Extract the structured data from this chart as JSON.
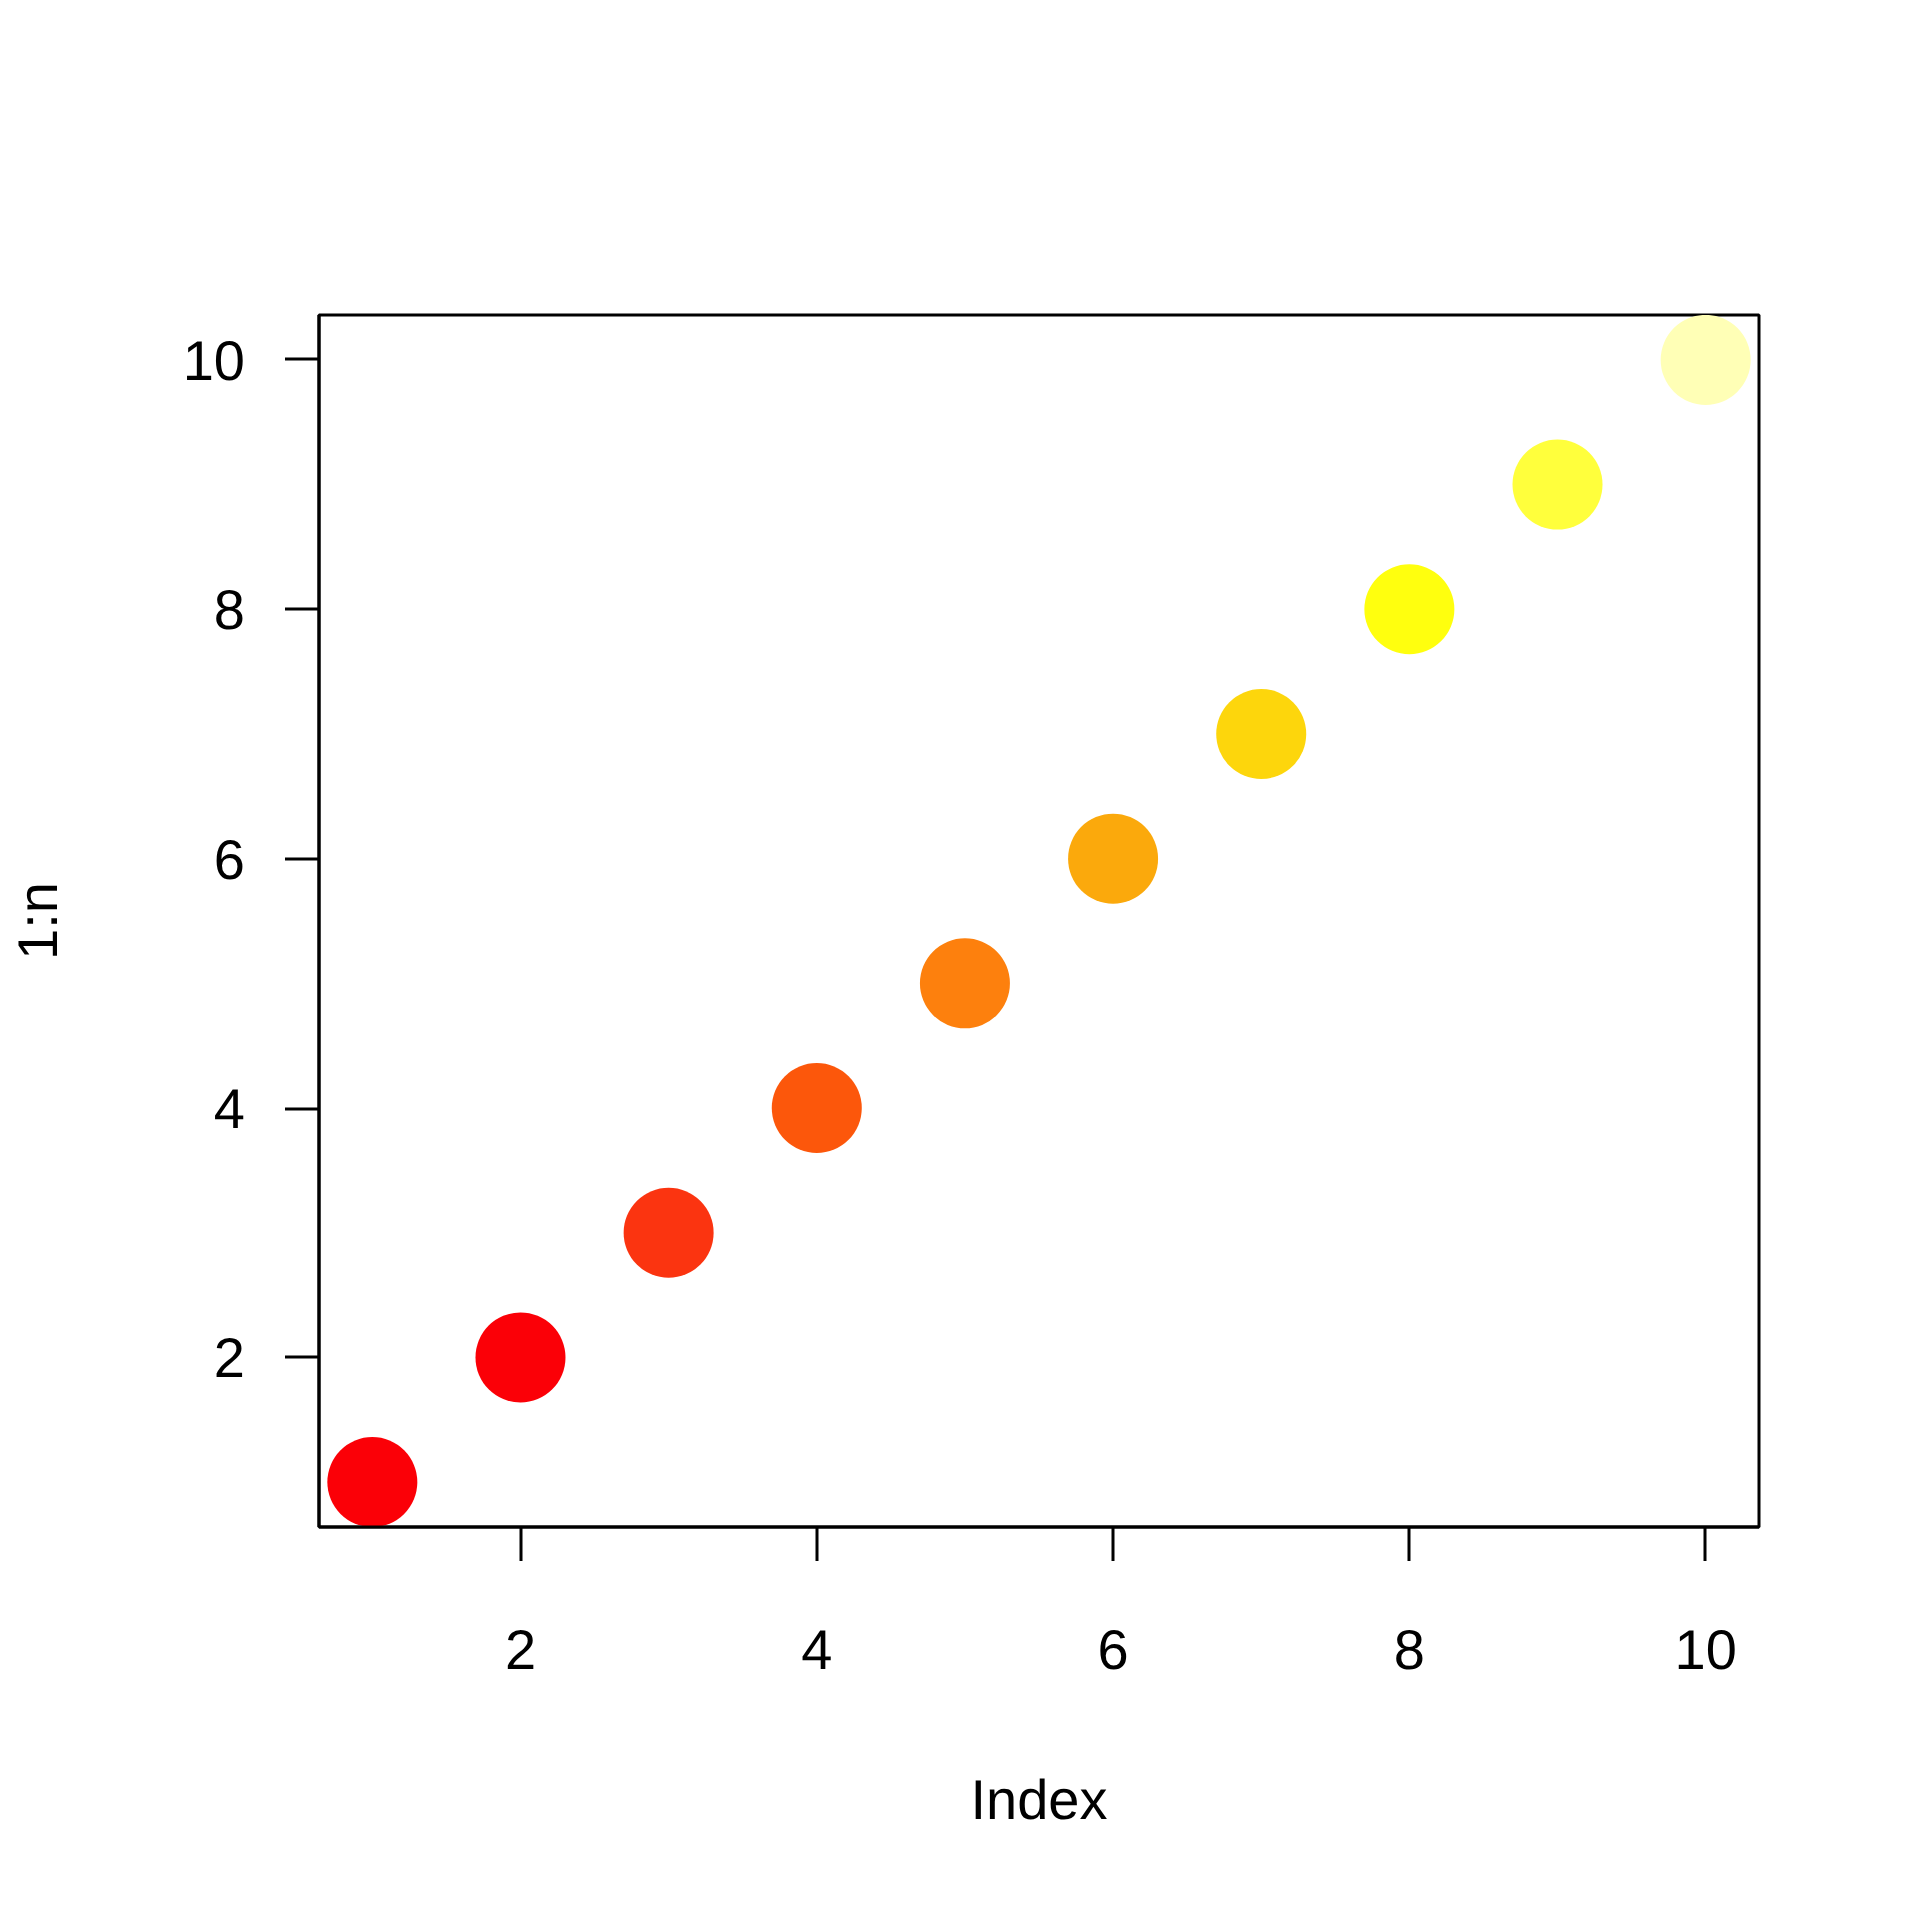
{
  "chart_data": {
    "type": "scatter",
    "xlabel": "Index",
    "ylabel": "1:n",
    "x": [
      1,
      2,
      3,
      4,
      5,
      6,
      7,
      8,
      9,
      10
    ],
    "values": [
      1,
      2,
      3,
      4,
      5,
      6,
      7,
      8,
      9,
      10
    ],
    "colors": [
      "#fb0007",
      "#fb0007",
      "#fb3410",
      "#fc570b",
      "#fd800d",
      "#fba90c",
      "#fdd60c",
      "#ffff0e",
      "#ffff3c",
      "#ffffb6"
    ],
    "xlim": [
      0.64,
      10.36
    ],
    "ylim": [
      0.64,
      10.36
    ],
    "xticks": [
      2,
      4,
      6,
      8,
      10
    ],
    "yticks": [
      2,
      4,
      6,
      8,
      10
    ],
    "grid": false,
    "marker": "circle"
  }
}
